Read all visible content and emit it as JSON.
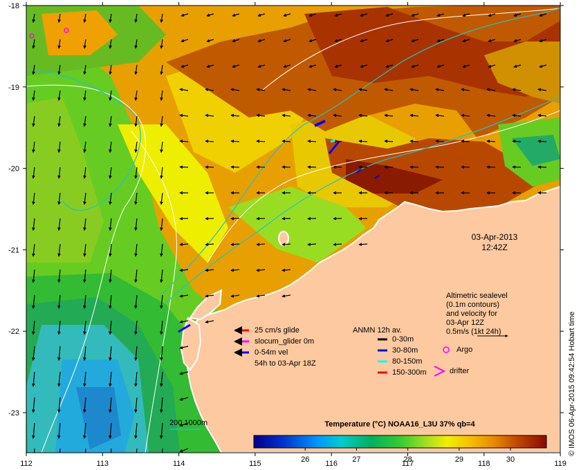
{
  "map": {
    "lon_ticks": [
      "112",
      "113",
      "114",
      "115",
      "116",
      "117",
      "118",
      "119"
    ],
    "lat_ticks": [
      "-18",
      "-19",
      "-20",
      "-21",
      "-22",
      "-23"
    ],
    "timestamp": {
      "date": "03-Apr-2013",
      "time": "12:42Z"
    },
    "altimetry": {
      "lines": [
        "Altimetric sealevel",
        "(0.1m contours)",
        "and velocity for",
        "03-Apr 12Z",
        "0.5m/s (1kt 24h)"
      ]
    },
    "glider_legend": [
      {
        "label": "25 cm/s glide",
        "color": "#ff0000"
      },
      {
        "label": "slocum_glider 0m",
        "color": "#ff00ff"
      },
      {
        "label": "0-54m vel",
        "color": "#0000ff"
      },
      {
        "label": "54h to 03-Apr 18Z",
        "color": ""
      }
    ],
    "anmn_legend": {
      "title": "ANMN 12h av.",
      "items": [
        {
          "label": "0-30m",
          "color": "#000000"
        },
        {
          "label": "30-80m",
          "color": "#0000ff"
        },
        {
          "label": "80-150m",
          "color": "#00ffff"
        },
        {
          "label": "150-300m",
          "color": "#ff0000"
        }
      ]
    },
    "markers": {
      "argo": "Argo",
      "drifter": "drifter"
    },
    "depth_contours": "200  1000m",
    "colorbar": {
      "title": "Temperature (°C) NOAA16_L3U 37% qb=4",
      "ticks": [
        "26",
        "27",
        "28",
        "29",
        "30"
      ],
      "range": [
        25,
        30.7
      ]
    },
    "credit": "© IMOS 06-Apr-2015 09:42:54 Hobart time",
    "colors": {
      "land": "#fcc9a0",
      "coast": "#ffffff",
      "contour": "#ffffff",
      "bathy": "#22c2c2"
    }
  }
}
